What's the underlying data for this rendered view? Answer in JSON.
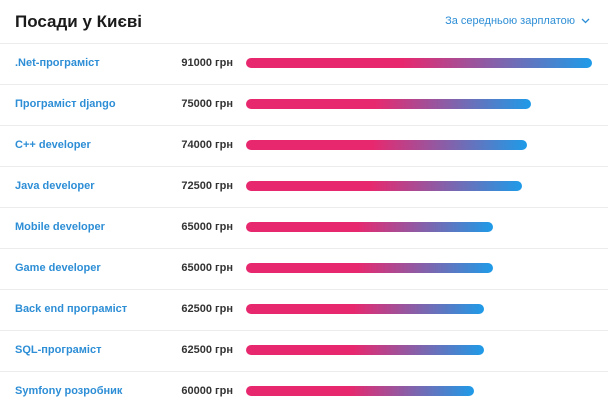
{
  "header": {
    "title": "Посади у Києві",
    "sort_label": "За середньою зарплатою",
    "sort_icon": "chevron-down-icon"
  },
  "colors": {
    "bar_start": "#e8286e",
    "bar_end": "#1e9be8",
    "link": "#2d8ed6"
  },
  "chart_data": {
    "type": "bar",
    "orientation": "horizontal",
    "unit": "грн",
    "categories": [
      ".Net-програміст",
      "Програміст django",
      "C++ developer",
      "Java developer",
      "Mobile developer",
      "Game developer",
      "Back end програміст",
      "SQL-програміст",
      "Symfony розробник"
    ],
    "values": [
      91000,
      75000,
      74000,
      72500,
      65000,
      65000,
      62500,
      62500,
      60000
    ],
    "value_labels": [
      "91000 грн",
      "75000 грн",
      "74000 грн",
      "72500 грн",
      "65000 грн",
      "65000 грн",
      "62500 грн",
      "62500 грн",
      "60000 грн"
    ],
    "xlim": [
      0,
      91000
    ]
  }
}
